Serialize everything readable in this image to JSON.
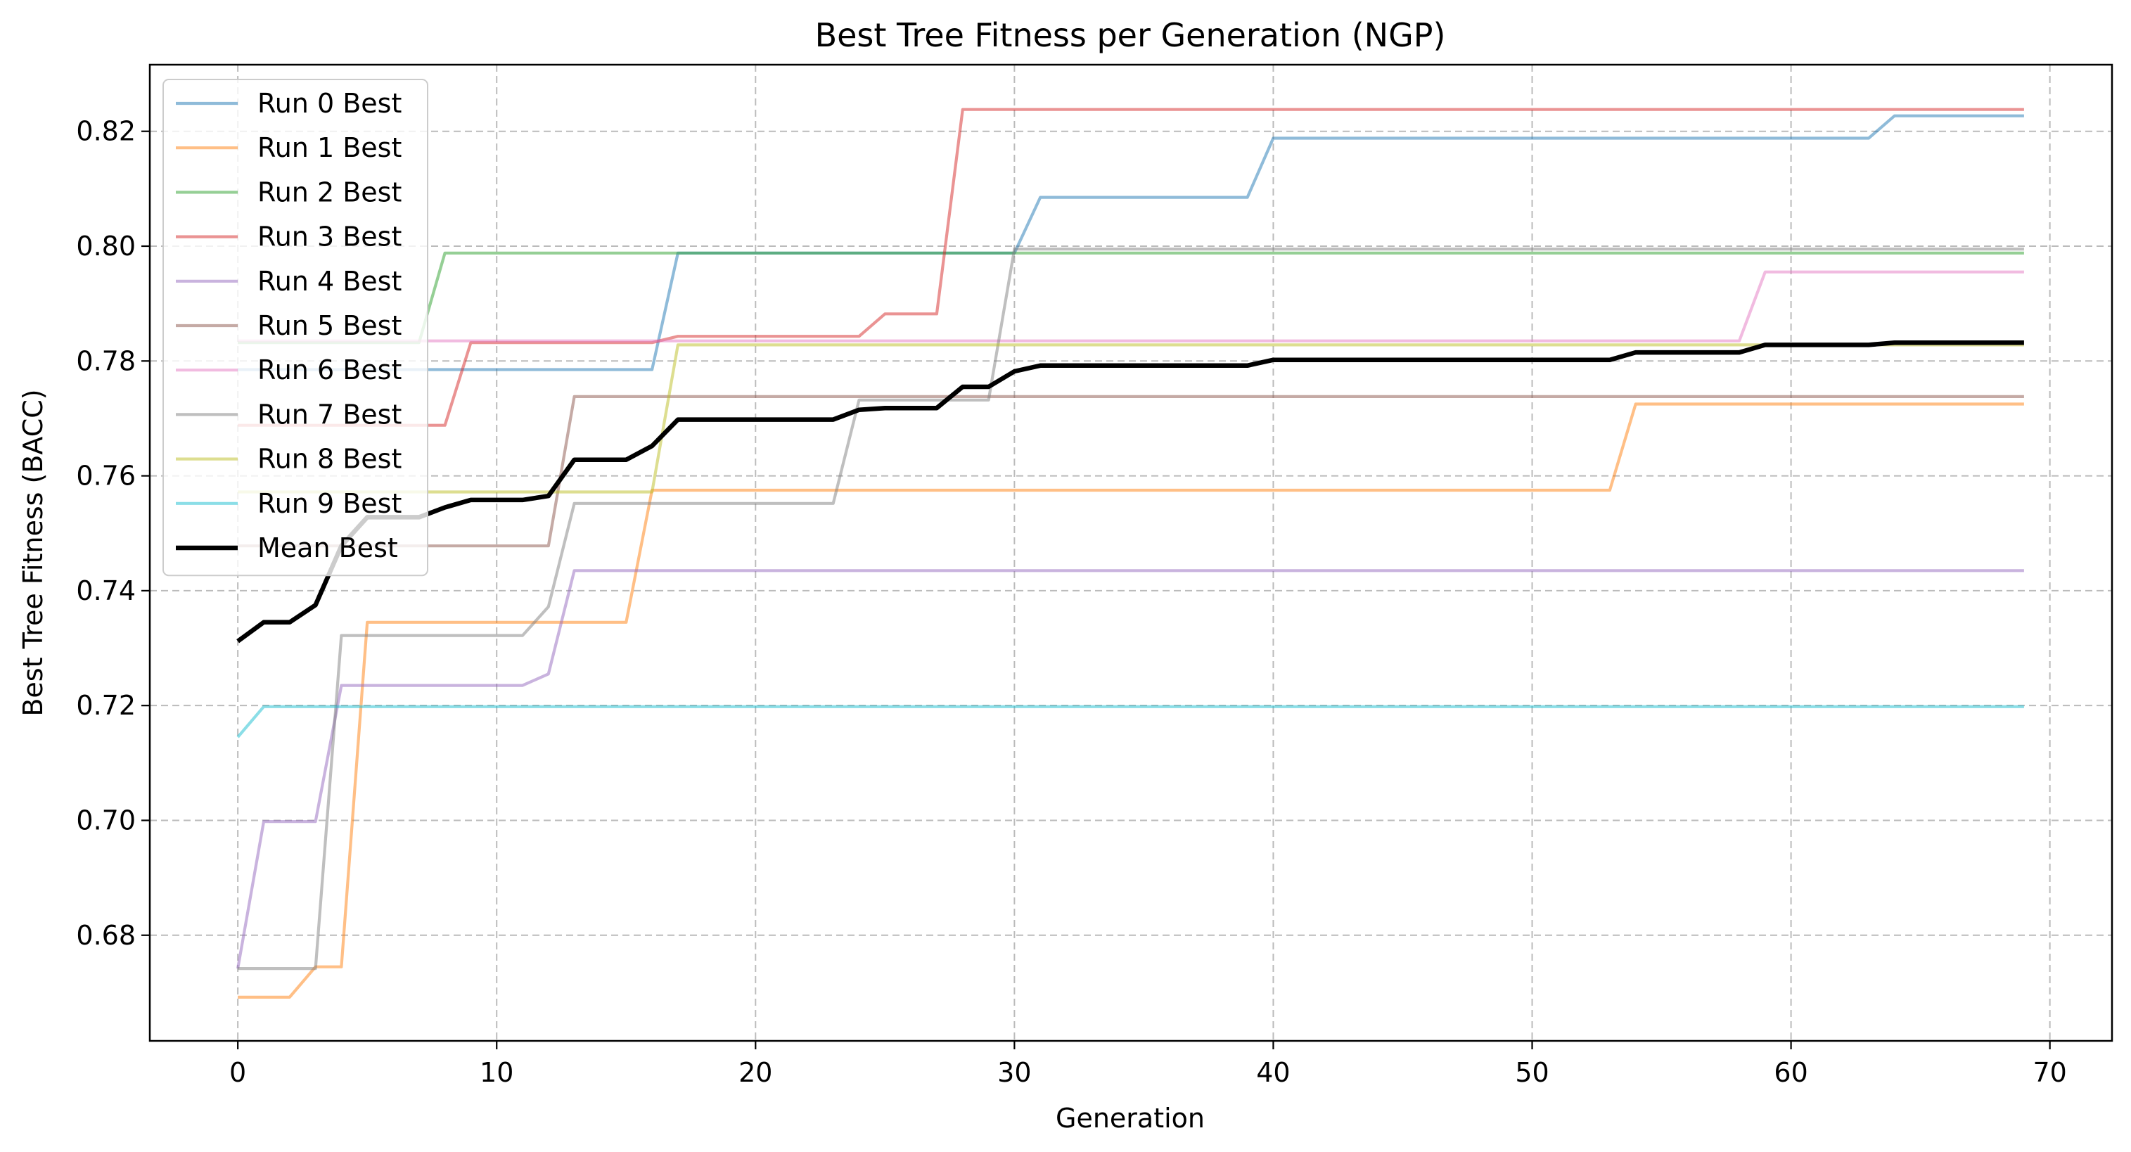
{
  "chart_data": {
    "type": "line",
    "title": "Best Tree Fitness per Generation (NGP)",
    "xlabel": "Generation",
    "ylabel": "Best Tree Fitness (BACC)",
    "xlim": [
      -3.4,
      72.4
    ],
    "ylim": [
      0.6616,
      0.8316
    ],
    "xticks": [
      0,
      10,
      20,
      30,
      40,
      50,
      60,
      70
    ],
    "yticks": [
      0.68,
      0.7,
      0.72,
      0.74,
      0.76,
      0.78,
      0.8,
      0.82
    ],
    "ytick_labels": [
      "0.68",
      "0.70",
      "0.72",
      "0.74",
      "0.76",
      "0.78",
      "0.80",
      "0.82"
    ],
    "grid": true,
    "grid_style": "dashed",
    "legend_position": "upper-left",
    "series": [
      {
        "name": "Run 0 Best",
        "color": "#1f77b4",
        "alpha": 0.5,
        "width": 4.2,
        "points": [
          [
            0,
            0.7785
          ],
          [
            16,
            0.7785
          ],
          [
            17,
            0.7988
          ],
          [
            30,
            0.7988
          ],
          [
            31,
            0.8085
          ],
          [
            39,
            0.8085
          ],
          [
            40,
            0.8188
          ],
          [
            63,
            0.8188
          ],
          [
            64,
            0.8227
          ],
          [
            69,
            0.8227
          ]
        ]
      },
      {
        "name": "Run 1 Best",
        "color": "#ff7f0e",
        "alpha": 0.5,
        "width": 4.2,
        "points": [
          [
            0,
            0.6692
          ],
          [
            2,
            0.6692
          ],
          [
            3,
            0.6745
          ],
          [
            4,
            0.6745
          ],
          [
            5,
            0.7345
          ],
          [
            15,
            0.7345
          ],
          [
            16,
            0.7575
          ],
          [
            53,
            0.7575
          ],
          [
            54,
            0.7725
          ],
          [
            69,
            0.7725
          ]
        ]
      },
      {
        "name": "Run 2 Best",
        "color": "#2ca02c",
        "alpha": 0.5,
        "width": 4.2,
        "points": [
          [
            0,
            0.7832
          ],
          [
            7,
            0.7832
          ],
          [
            8,
            0.7988
          ],
          [
            69,
            0.7988
          ]
        ]
      },
      {
        "name": "Run 3 Best",
        "color": "#d62728",
        "alpha": 0.5,
        "width": 4.2,
        "points": [
          [
            0,
            0.7688
          ],
          [
            8,
            0.7688
          ],
          [
            9,
            0.7832
          ],
          [
            16,
            0.7832
          ],
          [
            17,
            0.7843
          ],
          [
            24,
            0.7843
          ],
          [
            25,
            0.7882
          ],
          [
            27,
            0.7882
          ],
          [
            28,
            0.8238
          ],
          [
            69,
            0.8238
          ]
        ]
      },
      {
        "name": "Run 4 Best",
        "color": "#9467bd",
        "alpha": 0.5,
        "width": 4.2,
        "points": [
          [
            0,
            0.6742
          ],
          [
            1,
            0.6998
          ],
          [
            3,
            0.6998
          ],
          [
            4,
            0.7235
          ],
          [
            11,
            0.7235
          ],
          [
            12,
            0.7255
          ],
          [
            13,
            0.7435
          ],
          [
            69,
            0.7435
          ]
        ]
      },
      {
        "name": "Run 5 Best",
        "color": "#8c564b",
        "alpha": 0.5,
        "width": 4.2,
        "points": [
          [
            0,
            0.7478
          ],
          [
            12,
            0.7478
          ],
          [
            13,
            0.7738
          ],
          [
            69,
            0.7738
          ]
        ]
      },
      {
        "name": "Run 6 Best",
        "color": "#e377c2",
        "alpha": 0.5,
        "width": 4.2,
        "points": [
          [
            0,
            0.7835
          ],
          [
            58,
            0.7835
          ],
          [
            59,
            0.7955
          ],
          [
            69,
            0.7955
          ]
        ]
      },
      {
        "name": "Run 7 Best",
        "color": "#7f7f7f",
        "alpha": 0.5,
        "width": 4.2,
        "points": [
          [
            0,
            0.6742
          ],
          [
            3,
            0.6742
          ],
          [
            4,
            0.7322
          ],
          [
            11,
            0.7322
          ],
          [
            12,
            0.7372
          ],
          [
            13,
            0.7552
          ],
          [
            23,
            0.7552
          ],
          [
            24,
            0.7732
          ],
          [
            29,
            0.7732
          ],
          [
            30,
            0.7995
          ],
          [
            69,
            0.7995
          ]
        ]
      },
      {
        "name": "Run 8 Best",
        "color": "#bcbd22",
        "alpha": 0.5,
        "width": 4.2,
        "points": [
          [
            0,
            0.7572
          ],
          [
            16,
            0.7572
          ],
          [
            17,
            0.7828
          ],
          [
            69,
            0.7828
          ]
        ]
      },
      {
        "name": "Run 9 Best",
        "color": "#17becf",
        "alpha": 0.5,
        "width": 4.2,
        "points": [
          [
            0,
            0.7145
          ],
          [
            1,
            0.7198
          ],
          [
            69,
            0.7198
          ]
        ]
      },
      {
        "name": "Mean Best",
        "color": "#000000",
        "alpha": 1.0,
        "width": 6.5,
        "points": [
          [
            0,
            0.7312
          ],
          [
            1,
            0.7345
          ],
          [
            2,
            0.7345
          ],
          [
            3,
            0.7375
          ],
          [
            4,
            0.7478
          ],
          [
            5,
            0.7528
          ],
          [
            7,
            0.7528
          ],
          [
            8,
            0.7545
          ],
          [
            9,
            0.7558
          ],
          [
            11,
            0.7558
          ],
          [
            12,
            0.7565
          ],
          [
            13,
            0.7628
          ],
          [
            15,
            0.7628
          ],
          [
            16,
            0.7652
          ],
          [
            17,
            0.7698
          ],
          [
            23,
            0.7698
          ],
          [
            24,
            0.7715
          ],
          [
            25,
            0.7718
          ],
          [
            27,
            0.7718
          ],
          [
            28,
            0.7755
          ],
          [
            29,
            0.7755
          ],
          [
            30,
            0.7782
          ],
          [
            31,
            0.7792
          ],
          [
            39,
            0.7792
          ],
          [
            40,
            0.7802
          ],
          [
            53,
            0.7802
          ],
          [
            54,
            0.7815
          ],
          [
            58,
            0.7815
          ],
          [
            59,
            0.7828
          ],
          [
            63,
            0.7828
          ],
          [
            64,
            0.7832
          ],
          [
            69,
            0.7832
          ]
        ]
      }
    ]
  }
}
